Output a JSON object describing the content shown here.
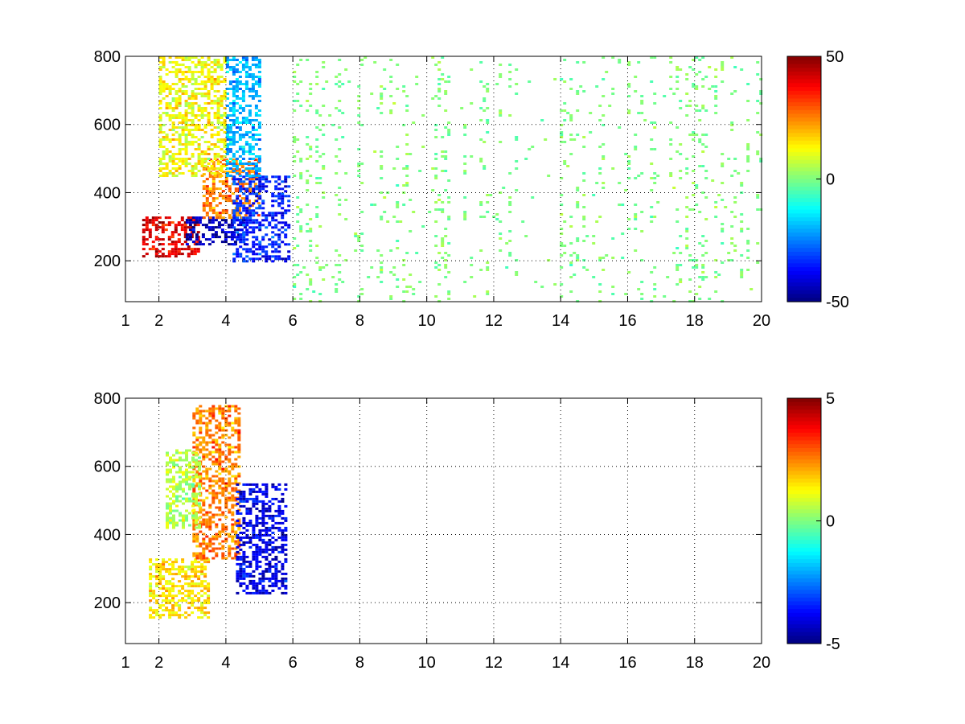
{
  "chart_data": [
    {
      "type": "heatmap",
      "title": "",
      "xlabel": "",
      "ylabel": "",
      "xlim": [
        1,
        20
      ],
      "ylim": [
        80,
        800
      ],
      "grid": true,
      "x_ticks": [
        "1",
        "2",
        "4",
        "6",
        "8",
        "10",
        "12",
        "14",
        "16",
        "18",
        "20"
      ],
      "x_tick_values": [
        1,
        2,
        4,
        6,
        8,
        10,
        12,
        14,
        16,
        18,
        20
      ],
      "y_ticks": [
        "200",
        "400",
        "600",
        "800"
      ],
      "y_tick_values": [
        200,
        400,
        600,
        800
      ],
      "colorbar": {
        "colormap": "jet",
        "range": [
          -50,
          50
        ],
        "ticks": [
          "50",
          "0",
          "-50"
        ],
        "tick_values": [
          50,
          0,
          -50
        ]
      },
      "features": [
        {
          "x_range": [
            1.5,
            3.2
          ],
          "y_range": [
            210,
            330
          ],
          "value": 40
        },
        {
          "x_range": [
            2.8,
            4.6
          ],
          "y_range": [
            250,
            330
          ],
          "value": -45
        },
        {
          "x_range": [
            3.3,
            5.0
          ],
          "y_range": [
            330,
            500
          ],
          "value": 25
        },
        {
          "x_range": [
            4.2,
            5.9
          ],
          "y_range": [
            200,
            450
          ],
          "value": -35
        },
        {
          "x_range": [
            4.0,
            5.0
          ],
          "y_range": [
            450,
            800
          ],
          "value": -20
        },
        {
          "x_range": [
            2.0,
            4.0
          ],
          "y_range": [
            450,
            800
          ],
          "value": 12
        },
        {
          "x_range": [
            6.0,
            20.0
          ],
          "y_range": [
            80,
            800
          ],
          "value": 0,
          "note": "sparse speckle"
        }
      ]
    },
    {
      "type": "heatmap",
      "title": "",
      "xlabel": "",
      "ylabel": "",
      "xlim": [
        1,
        20
      ],
      "ylim": [
        80,
        800
      ],
      "grid": true,
      "x_ticks": [
        "1",
        "2",
        "4",
        "6",
        "8",
        "10",
        "12",
        "14",
        "16",
        "18",
        "20"
      ],
      "x_tick_values": [
        1,
        2,
        4,
        6,
        8,
        10,
        12,
        14,
        16,
        18,
        20
      ],
      "y_ticks": [
        "200",
        "400",
        "600",
        "800"
      ],
      "y_tick_values": [
        200,
        400,
        600,
        800
      ],
      "colorbar": {
        "colormap": "jet",
        "range": [
          -5,
          5
        ],
        "ticks": [
          "5",
          "0",
          "-5"
        ],
        "tick_values": [
          5,
          0,
          -5
        ]
      },
      "features": [
        {
          "x_range": [
            1.7,
            3.5
          ],
          "y_range": [
            160,
            330
          ],
          "value": 1.5
        },
        {
          "x_range": [
            3.0,
            4.4
          ],
          "y_range": [
            330,
            780
          ],
          "value": 2.5
        },
        {
          "x_range": [
            4.3,
            5.8
          ],
          "y_range": [
            230,
            550
          ],
          "value": -4
        },
        {
          "x_range": [
            2.2,
            3.2
          ],
          "y_range": [
            420,
            650
          ],
          "value": 0.5
        }
      ]
    }
  ]
}
